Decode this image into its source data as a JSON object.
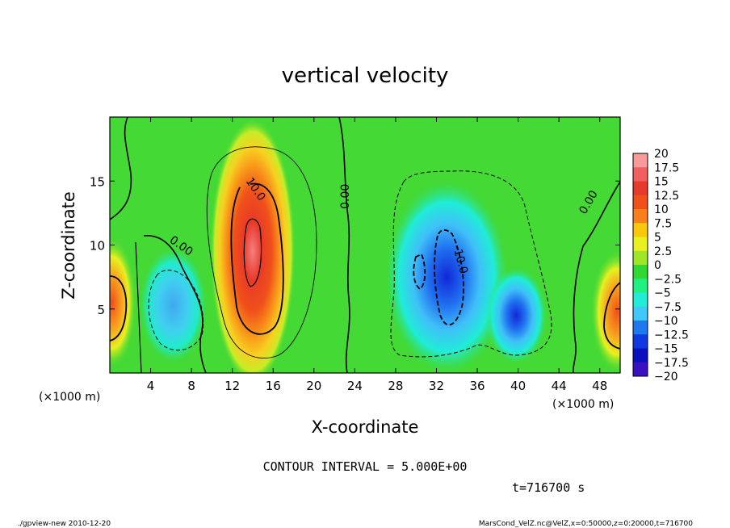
{
  "chart_data": {
    "type": "heatmap",
    "title": "vertical velocity",
    "xlabel": "X-coordinate",
    "ylabel": "Z-coordinate",
    "x_unit_left": "(×1000 m)",
    "x_unit_right": "(×1000 m)",
    "xlim": [
      0,
      50
    ],
    "ylim": [
      0,
      20
    ],
    "x_ticks": [
      {
        "v": 4,
        "label": "4"
      },
      {
        "v": 8,
        "label": "8"
      },
      {
        "v": 12,
        "label": "12"
      },
      {
        "v": 16,
        "label": "16"
      },
      {
        "v": 20,
        "label": "20"
      },
      {
        "v": 24,
        "label": "24"
      },
      {
        "v": 28,
        "label": "28"
      },
      {
        "v": 32,
        "label": "32"
      },
      {
        "v": 36,
        "label": "36"
      },
      {
        "v": 40,
        "label": "40"
      },
      {
        "v": 44,
        "label": "44"
      },
      {
        "v": 48,
        "label": "48"
      }
    ],
    "y_ticks": [
      {
        "v": 5,
        "label": "5"
      },
      {
        "v": 10,
        "label": "10"
      },
      {
        "v": 15,
        "label": "15"
      }
    ],
    "colorbar": {
      "levels": [
        {
          "label": "20",
          "color": "#f89a9a"
        },
        {
          "label": "17.5",
          "color": "#f06060"
        },
        {
          "label": "15",
          "color": "#e83a2a"
        },
        {
          "label": "12.5",
          "color": "#f0501a"
        },
        {
          "label": "10",
          "color": "#f8801a"
        },
        {
          "label": "7.5",
          "color": "#f8c80a"
        },
        {
          "label": "5",
          "color": "#e8f020"
        },
        {
          "label": "2.5",
          "color": "#a0e628"
        },
        {
          "label": "0",
          "color": "#32d832"
        },
        {
          "label": "−2.5",
          "color": "#20f080"
        },
        {
          "label": "−5",
          "color": "#20ecd8"
        },
        {
          "label": "−7.5",
          "color": "#40c8f8"
        },
        {
          "label": "−10",
          "color": "#2078f0"
        },
        {
          "label": "−12.5",
          "color": "#1038e0"
        },
        {
          "label": "−15",
          "color": "#0a10c0"
        },
        {
          "label": "−17.5",
          "color": "#3a10c0"
        },
        {
          "label": "−20",
          "color": "#6a20c8"
        }
      ]
    },
    "contour_labels": [
      {
        "text": "10.0",
        "x": 14.0,
        "y": 14.2,
        "rotate": 55
      },
      {
        "text": "0.00",
        "x": 6.8,
        "y": 9.7,
        "rotate": 35
      },
      {
        "text": "0.00",
        "x": 23.4,
        "y": 13.8,
        "rotate": -90
      },
      {
        "text": "-10.0",
        "x": 34.0,
        "y": 8.8,
        "rotate": 75
      },
      {
        "text": "0.00",
        "x": 47.2,
        "y": 13.2,
        "rotate": -60
      }
    ],
    "features": [
      {
        "name": "updraft-core",
        "cx": 14.0,
        "cy": 9.5,
        "rx": 2.6,
        "ry": 6.5,
        "value": 17.5
      },
      {
        "name": "left-edge-updraft",
        "cx": 0.2,
        "cy": 5.5,
        "rx": 1.5,
        "ry": 3.2,
        "value": 12.5
      },
      {
        "name": "right-edge-updraft",
        "cx": 49.7,
        "cy": 4.8,
        "rx": 1.6,
        "ry": 3.0,
        "value": 12.5
      },
      {
        "name": "downdraft-left",
        "cx": 6.2,
        "cy": 5.3,
        "rx": 2.2,
        "ry": 3.0,
        "value": -7.5
      },
      {
        "name": "downdraft-center",
        "cx": 33.0,
        "cy": 7.5,
        "rx": 4.0,
        "ry": 5.0,
        "value": -12.5
      },
      {
        "name": "downdraft-right",
        "cx": 39.8,
        "cy": 4.5,
        "rx": 2.0,
        "ry": 2.5,
        "value": -10
      }
    ],
    "grid": false,
    "legend": "right colorbar"
  },
  "footer": {
    "contour_interval": "CONTOUR INTERVAL = 5.000E+00",
    "time": "t=716700 s",
    "program": "./gpview-new  2010-12-20",
    "source": "MarsCond_VelZ.nc@VelZ,x=0:50000,z=0:20000,t=716700"
  }
}
